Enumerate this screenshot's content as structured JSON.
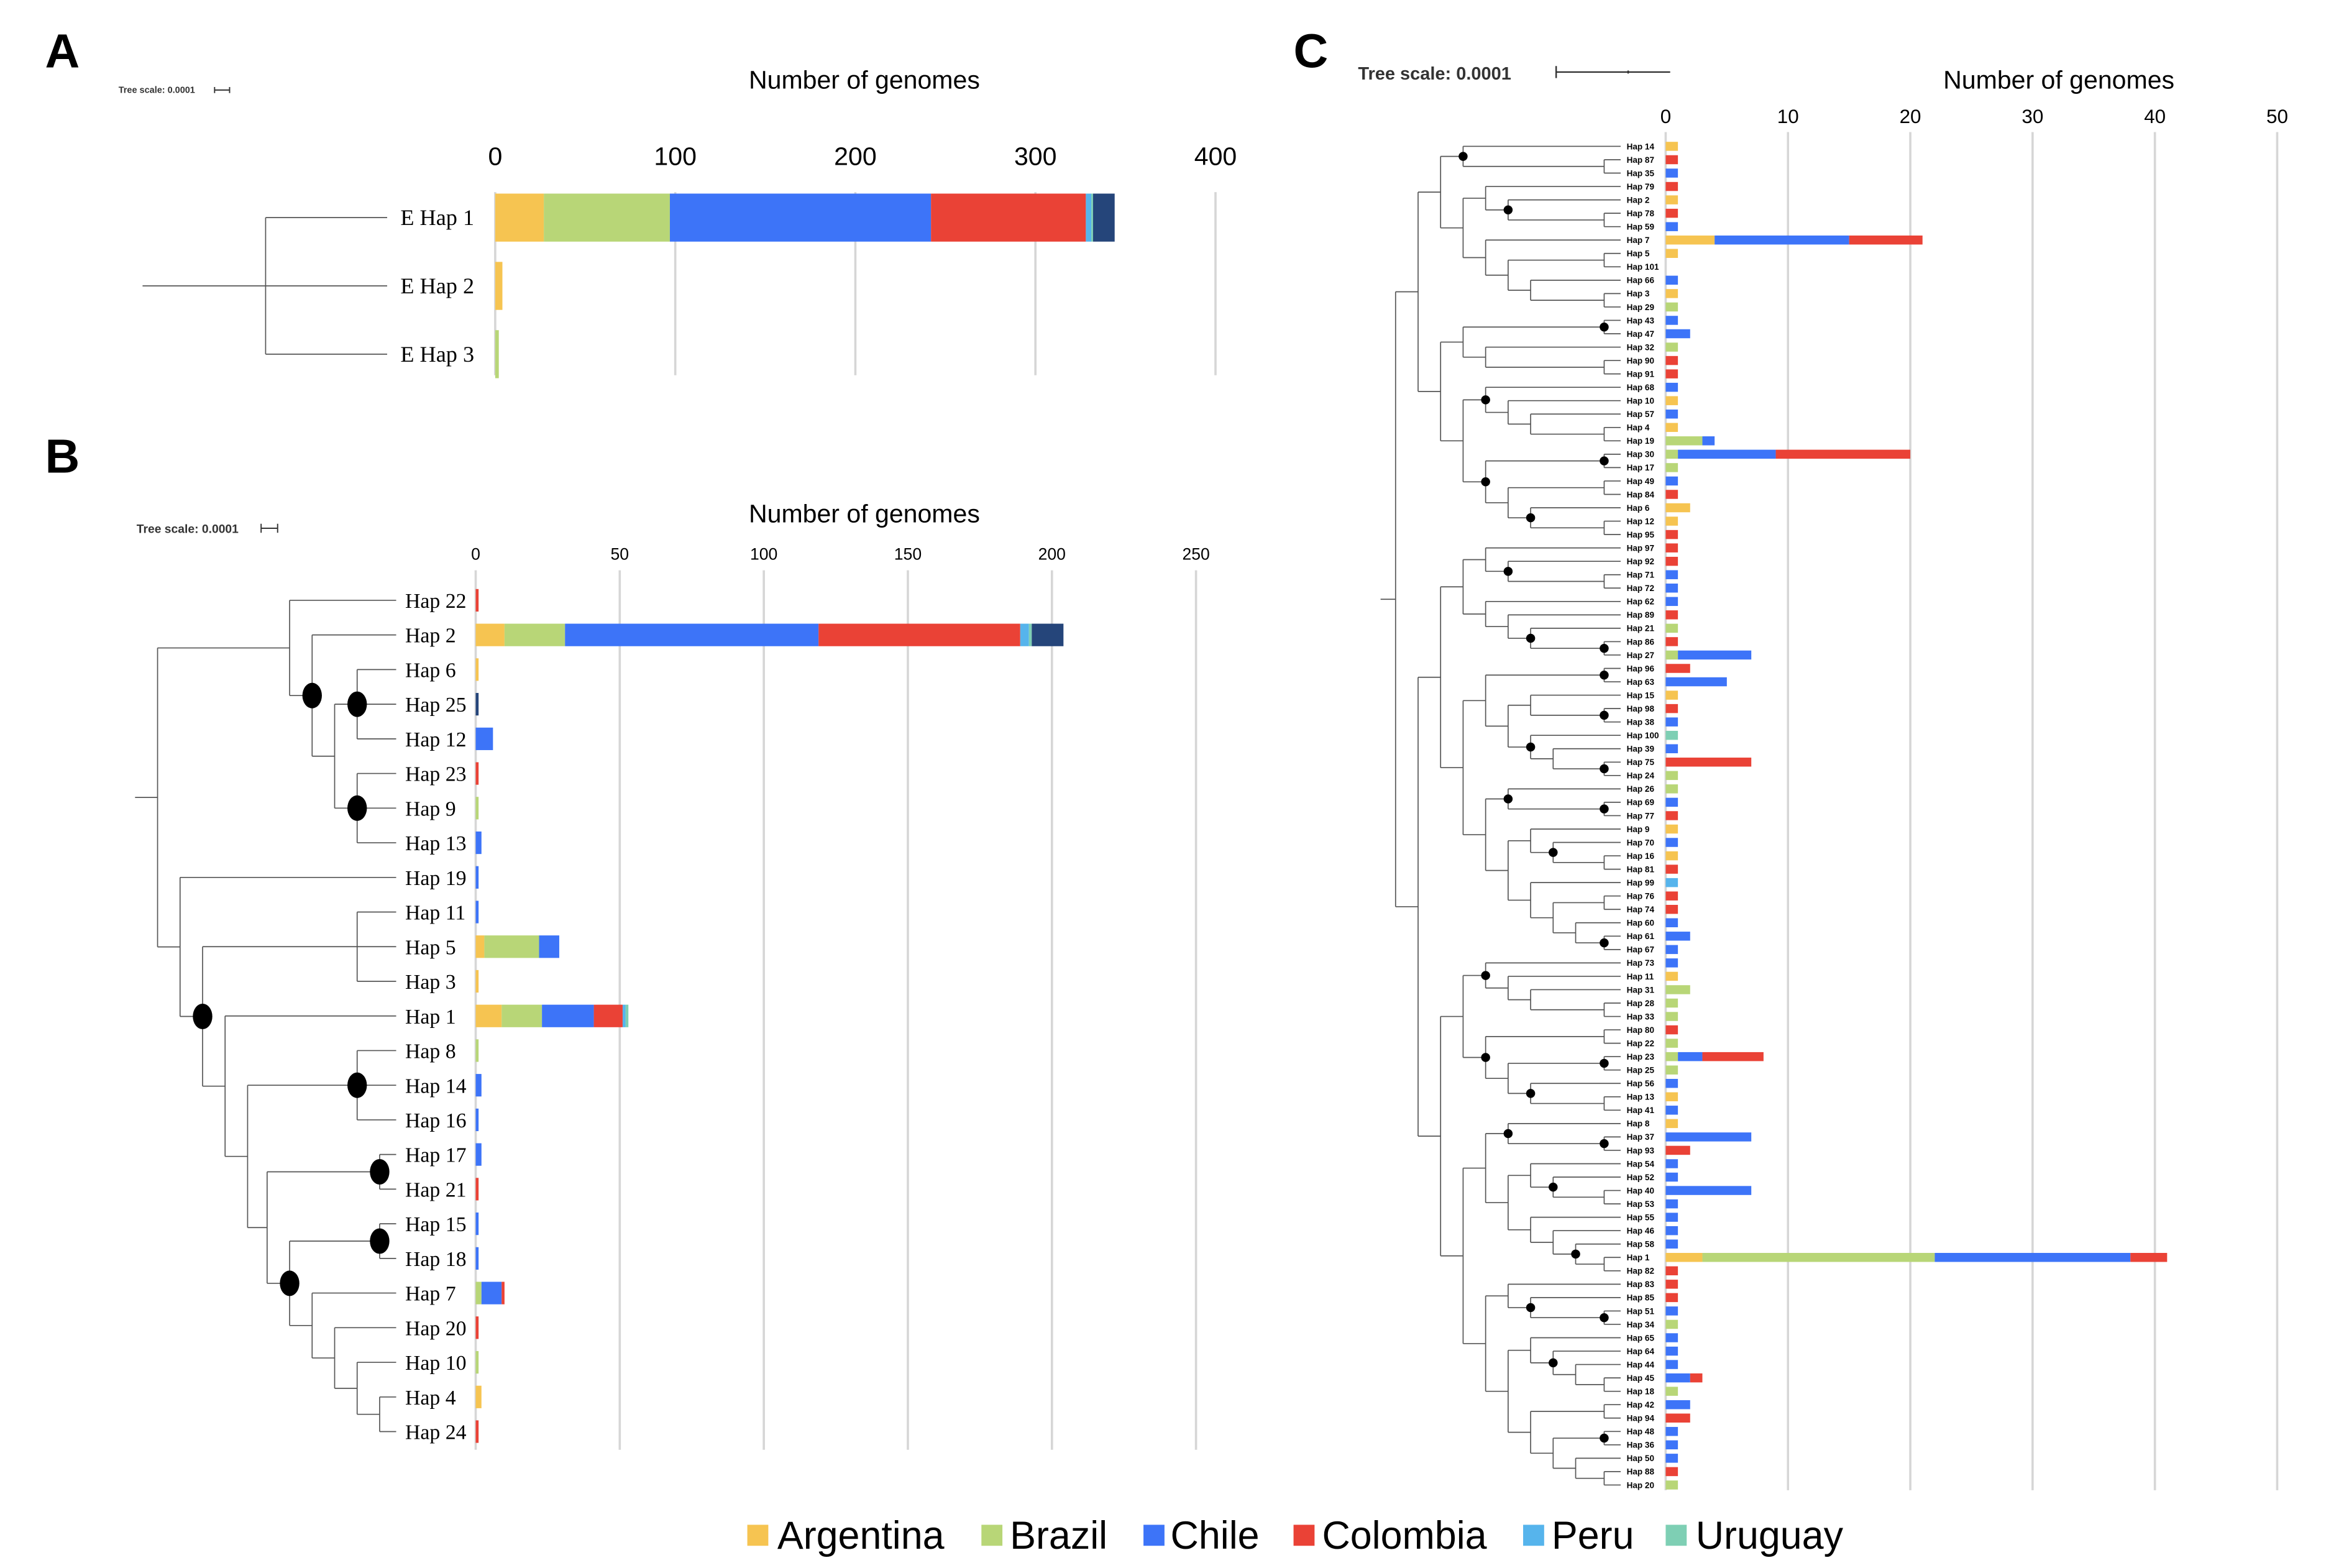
{
  "panels": {
    "A": {
      "letter": "A",
      "tree_scale": "Tree scale: 0.0001"
    },
    "B": {
      "letter": "B",
      "tree_scale": "Tree scale: 0.0001"
    },
    "C": {
      "letter": "C",
      "tree_scale": "Tree scale: 0.0001"
    }
  },
  "legend": [
    {
      "label": "Argentina",
      "color": "#f6c451"
    },
    {
      "label": "Brazil",
      "color": "#b8d677"
    },
    {
      "label": "Chile",
      "color": "#3d74f8"
    },
    {
      "label": "Colombia",
      "color": "#ea4236"
    },
    {
      "label": "Peru",
      "color": "#56b4ec"
    },
    {
      "label": "Uruguay",
      "color": "#7ecfb4"
    }
  ],
  "chart_data": [
    {
      "type": "bar",
      "orientation": "horizontal-stacked",
      "title": "Number of genomes",
      "xlim": [
        0,
        400
      ],
      "ticks": [
        "0",
        "100",
        "200",
        "300",
        "400"
      ],
      "grid": true,
      "categories": [
        "E Hap 1",
        "E Hap 2",
        "E Hap 3"
      ],
      "series": [
        {
          "name": "Argentina",
          "color": "#f6c451",
          "values": [
            27,
            4,
            0
          ]
        },
        {
          "name": "Brazil",
          "color": "#b8d677",
          "values": [
            70,
            0,
            2
          ]
        },
        {
          "name": "Chile",
          "color": "#3d74f8",
          "values": [
            145,
            0,
            0
          ]
        },
        {
          "name": "Colombia",
          "color": "#ea4236",
          "values": [
            86,
            0,
            0
          ]
        },
        {
          "name": "Peru",
          "color": "#56b4ec",
          "values": [
            3,
            0,
            0
          ]
        },
        {
          "name": "Uruguay",
          "color": "#7ecfb4",
          "values": [
            1,
            0,
            0
          ]
        },
        {
          "color": "#25457a",
          "values": [
            12,
            0,
            0
          ]
        }
      ]
    },
    {
      "type": "bar",
      "orientation": "horizontal-stacked",
      "title": "Number of genomes",
      "xlim": [
        0,
        250
      ],
      "ticks": [
        "0",
        "50",
        "100",
        "150",
        "200",
        "250"
      ],
      "grid": true,
      "categories": [
        "Hap 22",
        "Hap 2",
        "Hap 6",
        "Hap 25",
        "Hap 12",
        "Hap 23",
        "Hap 9",
        "Hap 13",
        "Hap 19",
        "Hap 11",
        "Hap 5",
        "Hap 3",
        "Hap 1",
        "Hap 8",
        "Hap 14",
        "Hap 16",
        "Hap 17",
        "Hap 21",
        "Hap 15",
        "Hap 18",
        "Hap 7",
        "Hap 20",
        "Hap 10",
        "Hap 4",
        "Hap 24"
      ],
      "series": [
        {
          "name": "Argentina",
          "color": "#f6c451",
          "values": [
            0,
            10,
            1,
            0,
            0,
            0,
            0,
            0,
            0,
            0,
            3,
            1,
            9,
            0,
            0,
            0,
            0,
            0,
            0,
            0,
            0,
            0,
            0,
            2,
            0
          ]
        },
        {
          "name": "Brazil",
          "color": "#b8d677",
          "values": [
            0,
            21,
            0,
            0,
            0,
            0,
            1,
            0,
            0,
            0,
            19,
            0,
            14,
            1,
            0,
            0,
            0,
            0,
            0,
            0,
            2,
            0,
            1,
            0,
            0
          ]
        },
        {
          "name": "Chile",
          "color": "#3d74f8",
          "values": [
            0,
            88,
            0,
            0,
            6,
            0,
            0,
            2,
            1,
            1,
            7,
            0,
            18,
            0,
            2,
            1,
            2,
            0,
            1,
            1,
            7,
            0,
            0,
            0,
            0
          ]
        },
        {
          "name": "Colombia",
          "color": "#ea4236",
          "values": [
            1,
            70,
            0,
            0,
            0,
            1,
            0,
            0,
            0,
            0,
            0,
            0,
            10,
            0,
            0,
            0,
            0,
            1,
            0,
            0,
            1,
            1,
            0,
            0,
            1
          ]
        },
        {
          "name": "Peru",
          "color": "#56b4ec",
          "values": [
            0,
            3,
            0,
            0,
            0,
            0,
            0,
            0,
            0,
            0,
            0,
            0,
            1,
            0,
            0,
            0,
            0,
            0,
            0,
            0,
            0,
            0,
            0,
            0,
            0
          ]
        },
        {
          "name": "Uruguay",
          "color": "#7ecfb4",
          "values": [
            0,
            1,
            0,
            0,
            0,
            0,
            0,
            0,
            0,
            0,
            0,
            0,
            1,
            0,
            0,
            0,
            0,
            0,
            0,
            0,
            0,
            0,
            0,
            0,
            0
          ]
        },
        {
          "color": "#25457a",
          "values": [
            0,
            11,
            0,
            1,
            0,
            0,
            0,
            0,
            0,
            0,
            0,
            0,
            0,
            0,
            0,
            0,
            0,
            0,
            0,
            0,
            0,
            0,
            0,
            0,
            0
          ]
        }
      ]
    },
    {
      "type": "bar",
      "orientation": "horizontal-stacked",
      "title": "Number of genomes",
      "xlim": [
        0,
        50
      ],
      "ticks": [
        "0",
        "10",
        "20",
        "30",
        "40",
        "50"
      ],
      "grid": true,
      "categories": [
        "Hap 14",
        "Hap 87",
        "Hap 35",
        "Hap 79",
        "Hap 2",
        "Hap 78",
        "Hap 59",
        "Hap 7",
        "Hap 5",
        "Hap 101",
        "Hap 66",
        "Hap 3",
        "Hap 29",
        "Hap 43",
        "Hap 47",
        "Hap 32",
        "Hap 90",
        "Hap 91",
        "Hap 68",
        "Hap 10",
        "Hap 57",
        "Hap 4",
        "Hap 19",
        "Hap 30",
        "Hap 17",
        "Hap 49",
        "Hap 84",
        "Hap 6",
        "Hap 12",
        "Hap 95",
        "Hap 97",
        "Hap 92",
        "Hap 71",
        "Hap 72",
        "Hap 62",
        "Hap 89",
        "Hap 21",
        "Hap 86",
        "Hap 27",
        "Hap 96",
        "Hap 63",
        "Hap 15",
        "Hap 98",
        "Hap 38",
        "Hap 100",
        "Hap 39",
        "Hap 75",
        "Hap 24",
        "Hap 26",
        "Hap 69",
        "Hap 77",
        "Hap 9",
        "Hap 70",
        "Hap 16",
        "Hap 81",
        "Hap 99",
        "Hap 76",
        "Hap 74",
        "Hap 60",
        "Hap 61",
        "Hap 67",
        "Hap 73",
        "Hap 11",
        "Hap 31",
        "Hap 28",
        "Hap 33",
        "Hap 80",
        "Hap 22",
        "Hap 23",
        "Hap 25",
        "Hap 56",
        "Hap 13",
        "Hap 41",
        "Hap 8",
        "Hap 37",
        "Hap 93",
        "Hap 54",
        "Hap 52",
        "Hap 40",
        "Hap 53",
        "Hap 55",
        "Hap 46",
        "Hap 58",
        "Hap 1",
        "Hap 82",
        "Hap 83",
        "Hap 85",
        "Hap 51",
        "Hap 34",
        "Hap 65",
        "Hap 64",
        "Hap 44",
        "Hap 45",
        "Hap 18",
        "Hap 42",
        "Hap 94",
        "Hap 48",
        "Hap 36",
        "Hap 50",
        "Hap 88",
        "Hap 20"
      ],
      "series": [
        {
          "name": "Argentina",
          "color": "#f6c451",
          "values": [
            1,
            0,
            0,
            0,
            1,
            0,
            0,
            4,
            1,
            0,
            0,
            1,
            0,
            0,
            0,
            0,
            0,
            0,
            0,
            1,
            0,
            1,
            0,
            0,
            0,
            0,
            0,
            2,
            1,
            0,
            0,
            0,
            0,
            0,
            0,
            0,
            0,
            0,
            0,
            0,
            0,
            1,
            0,
            0,
            0,
            0,
            0,
            0,
            0,
            0,
            0,
            1,
            0,
            1,
            0,
            0,
            0,
            0,
            0,
            0,
            0,
            0,
            1,
            0,
            0,
            0,
            0,
            0,
            0,
            0,
            0,
            1,
            0,
            1,
            0,
            0,
            0,
            0,
            0,
            0,
            0,
            0,
            0,
            3,
            0,
            0,
            0,
            0,
            0,
            0,
            0,
            0,
            0,
            0,
            0,
            0,
            0,
            0,
            0,
            0,
            0
          ]
        },
        {
          "name": "Brazil",
          "color": "#b8d677",
          "values": [
            0,
            0,
            0,
            0,
            0,
            0,
            0,
            0,
            0,
            0,
            0,
            0,
            1,
            0,
            0,
            1,
            0,
            0,
            0,
            0,
            0,
            0,
            3,
            1,
            1,
            0,
            0,
            0,
            0,
            0,
            0,
            0,
            0,
            0,
            0,
            0,
            1,
            0,
            1,
            0,
            0,
            0,
            0,
            0,
            0,
            0,
            0,
            1,
            1,
            0,
            0,
            0,
            0,
            0,
            0,
            0,
            0,
            0,
            0,
            0,
            0,
            0,
            0,
            2,
            1,
            1,
            0,
            1,
            1,
            1,
            0,
            0,
            0,
            0,
            0,
            0,
            0,
            0,
            0,
            0,
            0,
            0,
            0,
            19,
            0,
            0,
            0,
            0,
            1,
            0,
            0,
            0,
            0,
            1,
            0,
            0,
            0,
            0,
            0,
            0,
            1
          ]
        },
        {
          "name": "Chile",
          "color": "#3d74f8",
          "values": [
            0,
            0,
            1,
            0,
            0,
            0,
            1,
            11,
            0,
            0,
            1,
            0,
            0,
            1,
            2,
            0,
            0,
            0,
            1,
            0,
            1,
            0,
            1,
            8,
            0,
            1,
            0,
            0,
            0,
            0,
            0,
            0,
            1,
            1,
            1,
            0,
            0,
            0,
            6,
            0,
            5,
            0,
            0,
            1,
            0,
            1,
            0,
            0,
            0,
            1,
            0,
            0,
            1,
            0,
            0,
            0,
            0,
            0,
            1,
            2,
            1,
            1,
            0,
            0,
            0,
            0,
            0,
            0,
            2,
            0,
            1,
            0,
            1,
            0,
            7,
            0,
            1,
            1,
            7,
            1,
            1,
            1,
            1,
            16,
            0,
            0,
            0,
            1,
            0,
            1,
            1,
            1,
            2,
            0,
            2,
            0,
            1,
            1,
            1,
            0,
            0
          ]
        },
        {
          "name": "Colombia",
          "color": "#ea4236",
          "values": [
            0,
            1,
            0,
            1,
            0,
            1,
            0,
            6,
            0,
            0,
            0,
            0,
            0,
            0,
            0,
            0,
            1,
            1,
            0,
            0,
            0,
            0,
            0,
            11,
            0,
            0,
            1,
            0,
            0,
            1,
            1,
            1,
            0,
            0,
            0,
            1,
            0,
            1,
            0,
            2,
            0,
            0,
            1,
            0,
            0,
            0,
            7,
            0,
            0,
            0,
            1,
            0,
            0,
            0,
            1,
            0,
            1,
            1,
            0,
            0,
            0,
            0,
            0,
            0,
            0,
            0,
            1,
            0,
            5,
            0,
            0,
            0,
            0,
            0,
            0,
            2,
            0,
            0,
            0,
            0,
            0,
            0,
            0,
            3,
            1,
            1,
            1,
            0,
            0,
            0,
            0,
            0,
            1,
            0,
            0,
            2,
            0,
            0,
            0,
            1,
            0
          ]
        },
        {
          "name": "Peru",
          "color": "#56b4ec",
          "values": [
            0,
            0,
            0,
            0,
            0,
            0,
            0,
            0,
            0,
            0,
            0,
            0,
            0,
            0,
            0,
            0,
            0,
            0,
            0,
            0,
            0,
            0,
            0,
            0,
            0,
            0,
            0,
            0,
            0,
            0,
            0,
            0,
            0,
            0,
            0,
            0,
            0,
            0,
            0,
            0,
            0,
            0,
            0,
            0,
            0,
            0,
            0,
            0,
            0,
            0,
            0,
            0,
            0,
            0,
            0,
            1,
            0,
            0,
            0,
            0,
            0,
            0,
            0,
            0,
            0,
            0,
            0,
            0,
            0,
            0,
            0,
            0,
            0,
            0,
            0,
            0,
            0,
            0,
            0,
            0,
            0,
            0,
            0,
            0,
            0,
            0,
            0,
            0,
            0,
            0,
            0,
            0,
            0,
            0,
            0,
            0,
            0,
            0,
            0,
            0,
            0
          ]
        },
        {
          "name": "Uruguay",
          "color": "#7ecfb4",
          "values": [
            0,
            0,
            0,
            0,
            0,
            0,
            0,
            0,
            0,
            0,
            0,
            0,
            0,
            0,
            0,
            0,
            0,
            0,
            0,
            0,
            0,
            0,
            0,
            0,
            0,
            0,
            0,
            0,
            0,
            0,
            0,
            0,
            0,
            0,
            0,
            0,
            0,
            0,
            0,
            0,
            0,
            0,
            0,
            0,
            1,
            0,
            0,
            0,
            0,
            0,
            0,
            0,
            0,
            0,
            0,
            0,
            0,
            0,
            0,
            0,
            0,
            0,
            0,
            0,
            0,
            0,
            0,
            0,
            0,
            0,
            0,
            0,
            0,
            0,
            0,
            0,
            0,
            0,
            0,
            0,
            0,
            0,
            0,
            0,
            0,
            0,
            0,
            0,
            0,
            0,
            0,
            0,
            0,
            0,
            0,
            0,
            0,
            0,
            0,
            0,
            0
          ]
        }
      ]
    }
  ]
}
